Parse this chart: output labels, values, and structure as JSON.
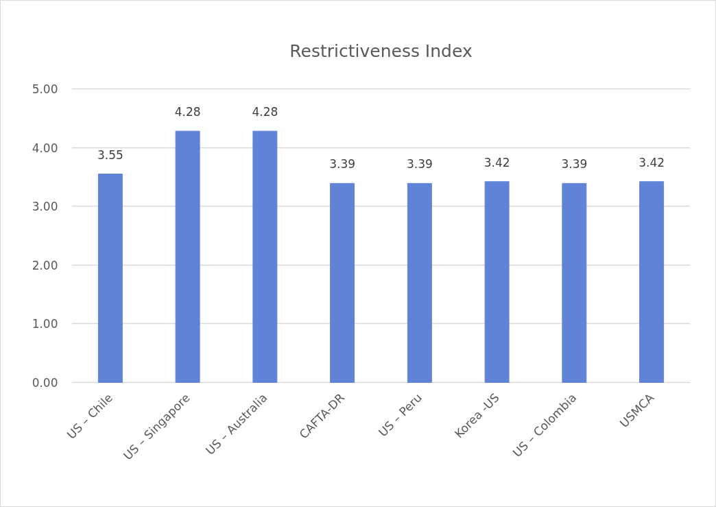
{
  "chart_data": {
    "type": "bar",
    "title": "Restrictiveness Index",
    "categories": [
      "US – Chile",
      "US – Singapore",
      "US – Australia",
      "CAFTA-DR",
      "US – Peru",
      "Korea -US",
      "US – Colombia",
      "USMCA"
    ],
    "values": [
      3.55,
      4.28,
      4.28,
      3.39,
      3.39,
      3.42,
      3.39,
      3.42
    ],
    "color": "#6083d8",
    "ylim": [
      0,
      5
    ],
    "yticks": [
      {
        "value": 0,
        "label": "0.00"
      },
      {
        "value": 1,
        "label": "1.00"
      },
      {
        "value": 2,
        "label": "2.00"
      },
      {
        "value": 3,
        "label": "3.00"
      },
      {
        "value": 4,
        "label": "4.00"
      },
      {
        "value": 5,
        "label": "5.00"
      }
    ],
    "grid": "y",
    "data_labels": true
  }
}
